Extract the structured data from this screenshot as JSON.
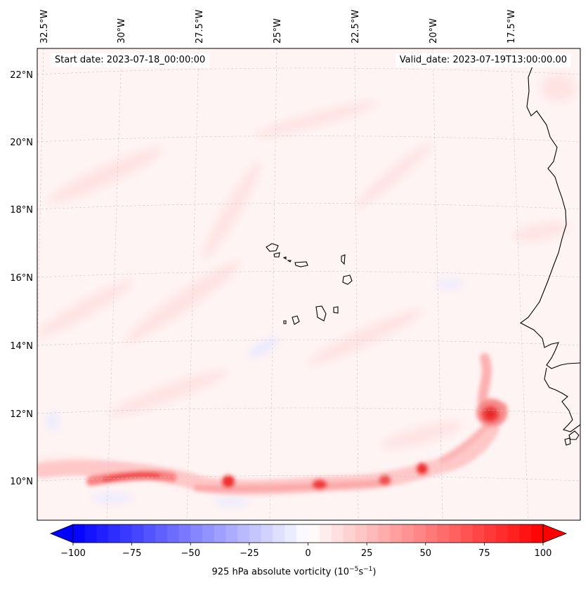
{
  "header": {
    "start_date": "Start date: 2023-07-18_00:00:00",
    "valid_date": "Valid_date: 2023-07-19T13:00:00.00"
  },
  "map": {
    "longitude_labels": [
      "32.5°W",
      "30°W",
      "27.5°W",
      "25°W",
      "22.5°W",
      "20°W",
      "17.5°W"
    ],
    "latitude_labels": [
      "22°N",
      "20°N",
      "18°N",
      "16°N",
      "14°N",
      "12°N",
      "10°N"
    ],
    "field": "925 hPa absolute vorticity",
    "features": [
      {
        "name": "Cape Verde islands",
        "lon": -24.0,
        "lat": 16.0
      },
      {
        "name": "vorticity maximum near Guinea-Bissau coast",
        "lon": -18.8,
        "lat": 11.9
      }
    ]
  },
  "colorbar": {
    "ticks": [
      "−100",
      "−75",
      "−50",
      "−25",
      "0",
      "25",
      "50",
      "75",
      "100"
    ],
    "min": -100,
    "max": 100,
    "step": 5,
    "low_color": "#0000ff",
    "mid_color": "#ffffff",
    "high_color": "#ff0000",
    "label_text": "925 hPa absolute vorticity (10",
    "label_exp1": "−5",
    "label_mid": "s",
    "label_exp2": "−1",
    "label_end": ")"
  }
}
